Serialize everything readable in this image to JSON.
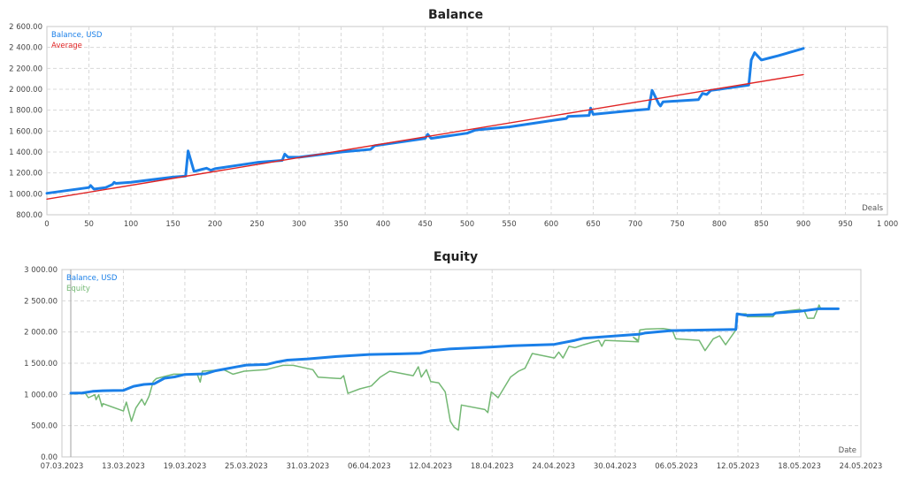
{
  "chart_data": [
    {
      "type": "line",
      "title": "Balance",
      "xlabel": "Deals",
      "ylabel": "",
      "xlim": [
        0,
        1000
      ],
      "ylim": [
        800,
        2600
      ],
      "grid": true,
      "legend_placement": "top-left",
      "x_ticks": [
        0,
        50,
        100,
        150,
        200,
        250,
        300,
        350,
        400,
        450,
        500,
        550,
        600,
        650,
        700,
        750,
        800,
        850,
        900,
        950,
        1000
      ],
      "x_tick_labels": [
        "0",
        "50",
        "100",
        "150",
        "200",
        "250",
        "300",
        "350",
        "400",
        "450",
        "500",
        "550",
        "600",
        "650",
        "700",
        "750",
        "800",
        "850",
        "900",
        "950",
        "1 000"
      ],
      "y_ticks": [
        800,
        1000,
        1200,
        1400,
        1600,
        1800,
        2000,
        2200,
        2400,
        2600
      ],
      "y_tick_labels": [
        "800.00",
        "1 000.00",
        "1 200.00",
        "1 400.00",
        "1 600.00",
        "1 800.00",
        "2 000.00",
        "2 200.00",
        "2 400.00",
        "2 600.00"
      ],
      "series": [
        {
          "name": "Balance, USD",
          "color": "#1a7fe8",
          "x": [
            0,
            50,
            52,
            56,
            70,
            78,
            80,
            82,
            100,
            120,
            150,
            165,
            168,
            175,
            185,
            190,
            195,
            200,
            250,
            280,
            283,
            287,
            300,
            350,
            385,
            390,
            450,
            453,
            457,
            500,
            510,
            550,
            600,
            618,
            620,
            645,
            647,
            650,
            700,
            716,
            720,
            728,
            730,
            733,
            775,
            780,
            785,
            790,
            800,
            835,
            838,
            842,
            850,
            860,
            870,
            900
          ],
          "y": [
            1005,
            1060,
            1080,
            1045,
            1060,
            1090,
            1110,
            1100,
            1110,
            1130,
            1160,
            1170,
            1410,
            1215,
            1235,
            1245,
            1225,
            1240,
            1300,
            1320,
            1380,
            1350,
            1350,
            1400,
            1425,
            1460,
            1530,
            1570,
            1530,
            1580,
            1610,
            1640,
            1700,
            1720,
            1740,
            1750,
            1820,
            1760,
            1800,
            1810,
            1990,
            1860,
            1840,
            1880,
            1900,
            1960,
            1950,
            1990,
            2000,
            2040,
            2280,
            2350,
            2280,
            2300,
            2320,
            2390
          ]
        },
        {
          "name": "Average",
          "color": "#e02424",
          "x": [
            0,
            900
          ],
          "y": [
            950,
            2140
          ]
        }
      ]
    },
    {
      "type": "line",
      "title": "Equity",
      "xlabel": "Date",
      "ylabel": "",
      "xlim": [
        "2023-03-07",
        "2023-05-24"
      ],
      "ylim": [
        0,
        3000
      ],
      "grid": true,
      "legend_placement": "top-left",
      "x_ticks": [
        "2023-03-07",
        "2023-03-13",
        "2023-03-19",
        "2023-03-25",
        "2023-03-31",
        "2023-04-06",
        "2023-04-12",
        "2023-04-18",
        "2023-04-24",
        "2023-04-30",
        "2023-05-06",
        "2023-05-12",
        "2023-05-18",
        "2023-05-24"
      ],
      "x_tick_labels": [
        "07.03.2023",
        "13.03.2023",
        "19.03.2023",
        "25.03.2023",
        "31.03.2023",
        "06.04.2023",
        "12.04.2023",
        "18.04.2023",
        "24.04.2023",
        "30.04.2023",
        "06.05.2023",
        "12.05.2023",
        "18.05.2023",
        "24.05.2023"
      ],
      "y_ticks": [
        0,
        500,
        1000,
        1500,
        2000,
        2500,
        3000
      ],
      "y_tick_labels": [
        "0.00",
        "500.00",
        "1 000.00",
        "1 500.00",
        "2 000.00",
        "2 500.00",
        "3 000.00"
      ],
      "series": [
        {
          "name": "Balance, USD",
          "color": "#1a7fe8",
          "x": [
            "2023-03-07 21:00",
            "2023-03-09 00:00",
            "2023-03-10 00:00",
            "2023-03-11 00:00",
            "2023-03-13 00:00",
            "2023-03-14 00:00",
            "2023-03-15 00:00",
            "2023-03-16 00:00",
            "2023-03-17 00:00",
            "2023-03-18 00:00",
            "2023-03-19 00:00",
            "2023-03-21 00:00",
            "2023-03-22 00:00",
            "2023-03-23 00:00",
            "2023-03-24 00:00",
            "2023-03-25 00:00",
            "2023-03-27 00:00",
            "2023-03-28 00:00",
            "2023-03-29 00:00",
            "2023-03-31 00:00",
            "2023-04-03 00:00",
            "2023-04-06 00:00",
            "2023-04-09 00:00",
            "2023-04-11 00:00",
            "2023-04-12 00:00",
            "2023-04-14 00:00",
            "2023-04-18 00:00",
            "2023-04-20 00:00",
            "2023-04-24 00:00",
            "2023-04-26 02:00",
            "2023-04-26 22:00",
            "2023-05-02 10:00",
            "2023-05-03 00:00",
            "2023-05-05 14:00",
            "2023-05-11 19:00",
            "2023-05-11 22:00",
            "2023-05-12 19:00",
            "2023-05-15 10:00",
            "2023-05-15 17:00",
            "2023-05-18 00:00",
            "2023-05-19 22:00",
            "2023-05-21 19:00"
          ],
          "y": [
            1020,
            1025,
            1050,
            1060,
            1065,
            1130,
            1160,
            1170,
            1260,
            1280,
            1320,
            1330,
            1380,
            1410,
            1440,
            1470,
            1480,
            1520,
            1550,
            1570,
            1610,
            1640,
            1650,
            1660,
            1700,
            1730,
            1760,
            1780,
            1800,
            1867,
            1900,
            1966,
            1985,
            2023,
            2041,
            2291,
            2267,
            2280,
            2305,
            2330,
            2372,
            2372
          ]
        },
        {
          "name": "Equity",
          "color": "#74b874",
          "x": [
            "2023-03-07 21:00",
            "2023-03-09 07:00",
            "2023-03-09 14:00",
            "2023-03-10 05:00",
            "2023-03-10 08:00",
            "2023-03-10 14:00",
            "2023-03-10 22:00",
            "2023-03-11 00:00",
            "2023-03-13 00:00",
            "2023-03-13 07:00",
            "2023-03-13 19:00",
            "2023-03-14 05:00",
            "2023-03-14 19:00",
            "2023-03-15 02:00",
            "2023-03-15 12:00",
            "2023-03-15 22:00",
            "2023-03-16 05:00",
            "2023-03-17 22:00",
            "2023-03-20 05:00",
            "2023-03-20 12:00",
            "2023-03-20 17:00",
            "2023-03-22 19:00",
            "2023-03-23 17:00",
            "2023-03-24 19:00",
            "2023-03-26 21:00",
            "2023-03-28 14:00",
            "2023-03-29 14:00",
            "2023-03-31 12:00",
            "2023-04-01 00:00",
            "2023-04-03 05:00",
            "2023-04-03 12:00",
            "2023-04-03 22:00",
            "2023-04-05 02:00",
            "2023-04-06 05:00",
            "2023-04-07 02:00",
            "2023-04-08 00:00",
            "2023-04-10 07:00",
            "2023-04-10 19:00",
            "2023-04-11 02:00",
            "2023-04-11 14:00",
            "2023-04-12 00:00",
            "2023-04-12 19:00",
            "2023-04-13 10:00",
            "2023-04-13 22:00",
            "2023-04-14 07:00",
            "2023-04-14 17:00",
            "2023-04-15 00:00",
            "2023-04-17 07:00",
            "2023-04-17 14:00",
            "2023-04-17 22:00",
            "2023-04-18 14:00",
            "2023-04-19 19:00",
            "2023-04-20 14:00",
            "2023-04-21 05:00",
            "2023-04-21 22:00",
            "2023-04-24 02:00",
            "2023-04-24 12:00",
            "2023-04-24 22:00",
            "2023-04-25 12:00",
            "2023-04-26 02:00",
            "2023-04-26 22:00",
            "2023-04-28 10:00",
            "2023-04-28 17:00",
            "2023-04-29 00:00",
            "2023-05-02 07:00",
            "2023-05-01 19:00",
            "2023-05-02 07:00",
            "2023-05-02 10:00",
            "2023-05-03 00:00",
            "2023-05-04 17:00",
            "2023-05-05 14:00",
            "2023-05-05 22:00",
            "2023-05-08 05:00",
            "2023-05-08 19:00",
            "2023-05-09 14:00",
            "2023-05-10 05:00",
            "2023-05-10 19:00",
            "2023-05-11 07:00",
            "2023-05-11 19:00",
            "2023-05-11 22:00",
            "2023-05-12 19:00",
            "2023-05-12 22:00",
            "2023-05-15 10:00",
            "2023-05-15 17:00",
            "2023-05-18 00:00",
            "2023-05-18 12:00",
            "2023-05-18 19:00",
            "2023-05-19 10:00",
            "2023-05-19 17:00",
            "2023-05-19 22:00",
            "2023-05-20 02:00",
            "2023-05-21 19:00"
          ],
          "y": [
            1009,
            1018,
            948,
            995,
            915,
            995,
            806,
            853,
            735,
            877,
            570,
            783,
            924,
            830,
            971,
            1207,
            1254,
            1325,
            1325,
            1198,
            1372,
            1396,
            1325,
            1372,
            1396,
            1466,
            1466,
            1396,
            1278,
            1254,
            1301,
            1018,
            1089,
            1136,
            1278,
            1372,
            1301,
            1443,
            1278,
            1396,
            1207,
            1184,
            1042,
            570,
            476,
            429,
            830,
            759,
            711,
            1042,
            948,
            1278,
            1372,
            1419,
            1655,
            1584,
            1678,
            1584,
            1772,
            1749,
            1796,
            1867,
            1772,
            1867,
            1843,
            1914,
            1867,
            2032,
            2046,
            2055,
            2032,
            1891,
            1867,
            1702,
            1891,
            1938,
            1796,
            1914,
            2032,
            2291,
            2291,
            2244,
            2244,
            2315,
            2362,
            2330,
            2220,
            2220,
            2338,
            2433,
            2372,
            2372
          ]
        }
      ]
    }
  ]
}
